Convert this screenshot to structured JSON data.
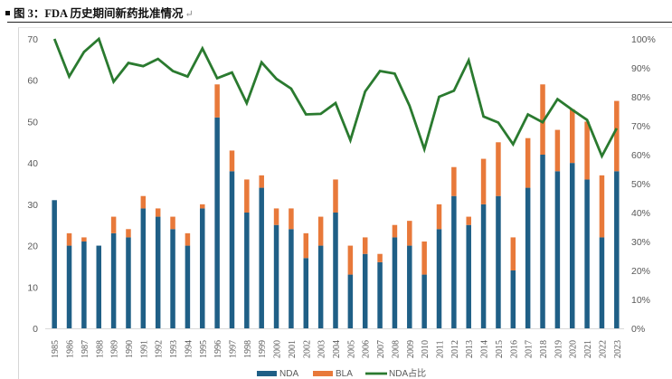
{
  "figure": {
    "label": "图 3：FDA 历史期间新药批准情况",
    "return_mark": "↵"
  },
  "chart_data": {
    "type": "bar",
    "stacked": true,
    "title": "FDA 历史期间新药批准情况",
    "categories": [
      "1985",
      "1986",
      "1987",
      "1988",
      "1989",
      "1990",
      "1991",
      "1992",
      "1993",
      "1994",
      "1995",
      "1996",
      "1997",
      "1998",
      "1999",
      "2000",
      "2001",
      "2002",
      "2003",
      "2004",
      "2005",
      "2006",
      "2007",
      "2008",
      "2009",
      "2010",
      "2011",
      "2012",
      "2013",
      "2014",
      "2015",
      "2016",
      "2017",
      "2018",
      "2019",
      "2020",
      "2021",
      "2022",
      "2023"
    ],
    "series": [
      {
        "name": "NDA",
        "type": "bar",
        "axis": "left",
        "color": "#1f5f86",
        "values": [
          31,
          20,
          21,
          20,
          23,
          22,
          29,
          27,
          24,
          20,
          29,
          51,
          38,
          28,
          34,
          25,
          24,
          17,
          20,
          28,
          13,
          18,
          16,
          22,
          20,
          13,
          24,
          32,
          25,
          30,
          32,
          14,
          34,
          42,
          38,
          40,
          36,
          22,
          38
        ]
      },
      {
        "name": "BLA",
        "type": "bar",
        "axis": "left",
        "color": "#e8793a",
        "values": [
          0,
          3,
          1,
          0,
          4,
          2,
          3,
          2,
          3,
          3,
          1,
          8,
          5,
          8,
          3,
          4,
          5,
          6,
          7,
          8,
          7,
          4,
          2,
          3,
          6,
          8,
          6,
          7,
          2,
          11,
          13,
          8,
          12,
          17,
          10,
          13,
          14,
          15,
          17
        ]
      },
      {
        "name": "NDA占比",
        "type": "line",
        "axis": "right",
        "color": "#2a7a2f",
        "values": [
          100,
          87,
          95.5,
          100,
          85.2,
          91.7,
          90.6,
          93.1,
          88.9,
          87,
          96.7,
          86.4,
          88.4,
          77.8,
          91.9,
          86.2,
          82.8,
          73.9,
          74.1,
          77.8,
          65,
          81.8,
          88.9,
          88,
          76.9,
          61.9,
          80,
          82.1,
          92.6,
          73.2,
          71.1,
          63.6,
          73.9,
          71.2,
          79.2,
          75.5,
          72,
          59.5,
          69.1
        ]
      }
    ],
    "y_left": {
      "min": 0,
      "max": 70,
      "ticks": [
        0,
        10,
        20,
        30,
        40,
        50,
        60,
        70
      ]
    },
    "y_right": {
      "min": 0,
      "max": 100,
      "ticks": [
        "0%",
        "10%",
        "20%",
        "30%",
        "40%",
        "50%",
        "60%",
        "70%",
        "80%",
        "90%",
        "100%"
      ]
    },
    "xlabel": "",
    "ylabel": "",
    "grid": false,
    "legend_position": "bottom"
  },
  "legend": {
    "items": [
      {
        "label": "NDA",
        "color": "#1f5f86"
      },
      {
        "label": "BLA",
        "color": "#e8793a"
      },
      {
        "label": "NDA占比",
        "color": "#2a7a2f"
      }
    ]
  }
}
